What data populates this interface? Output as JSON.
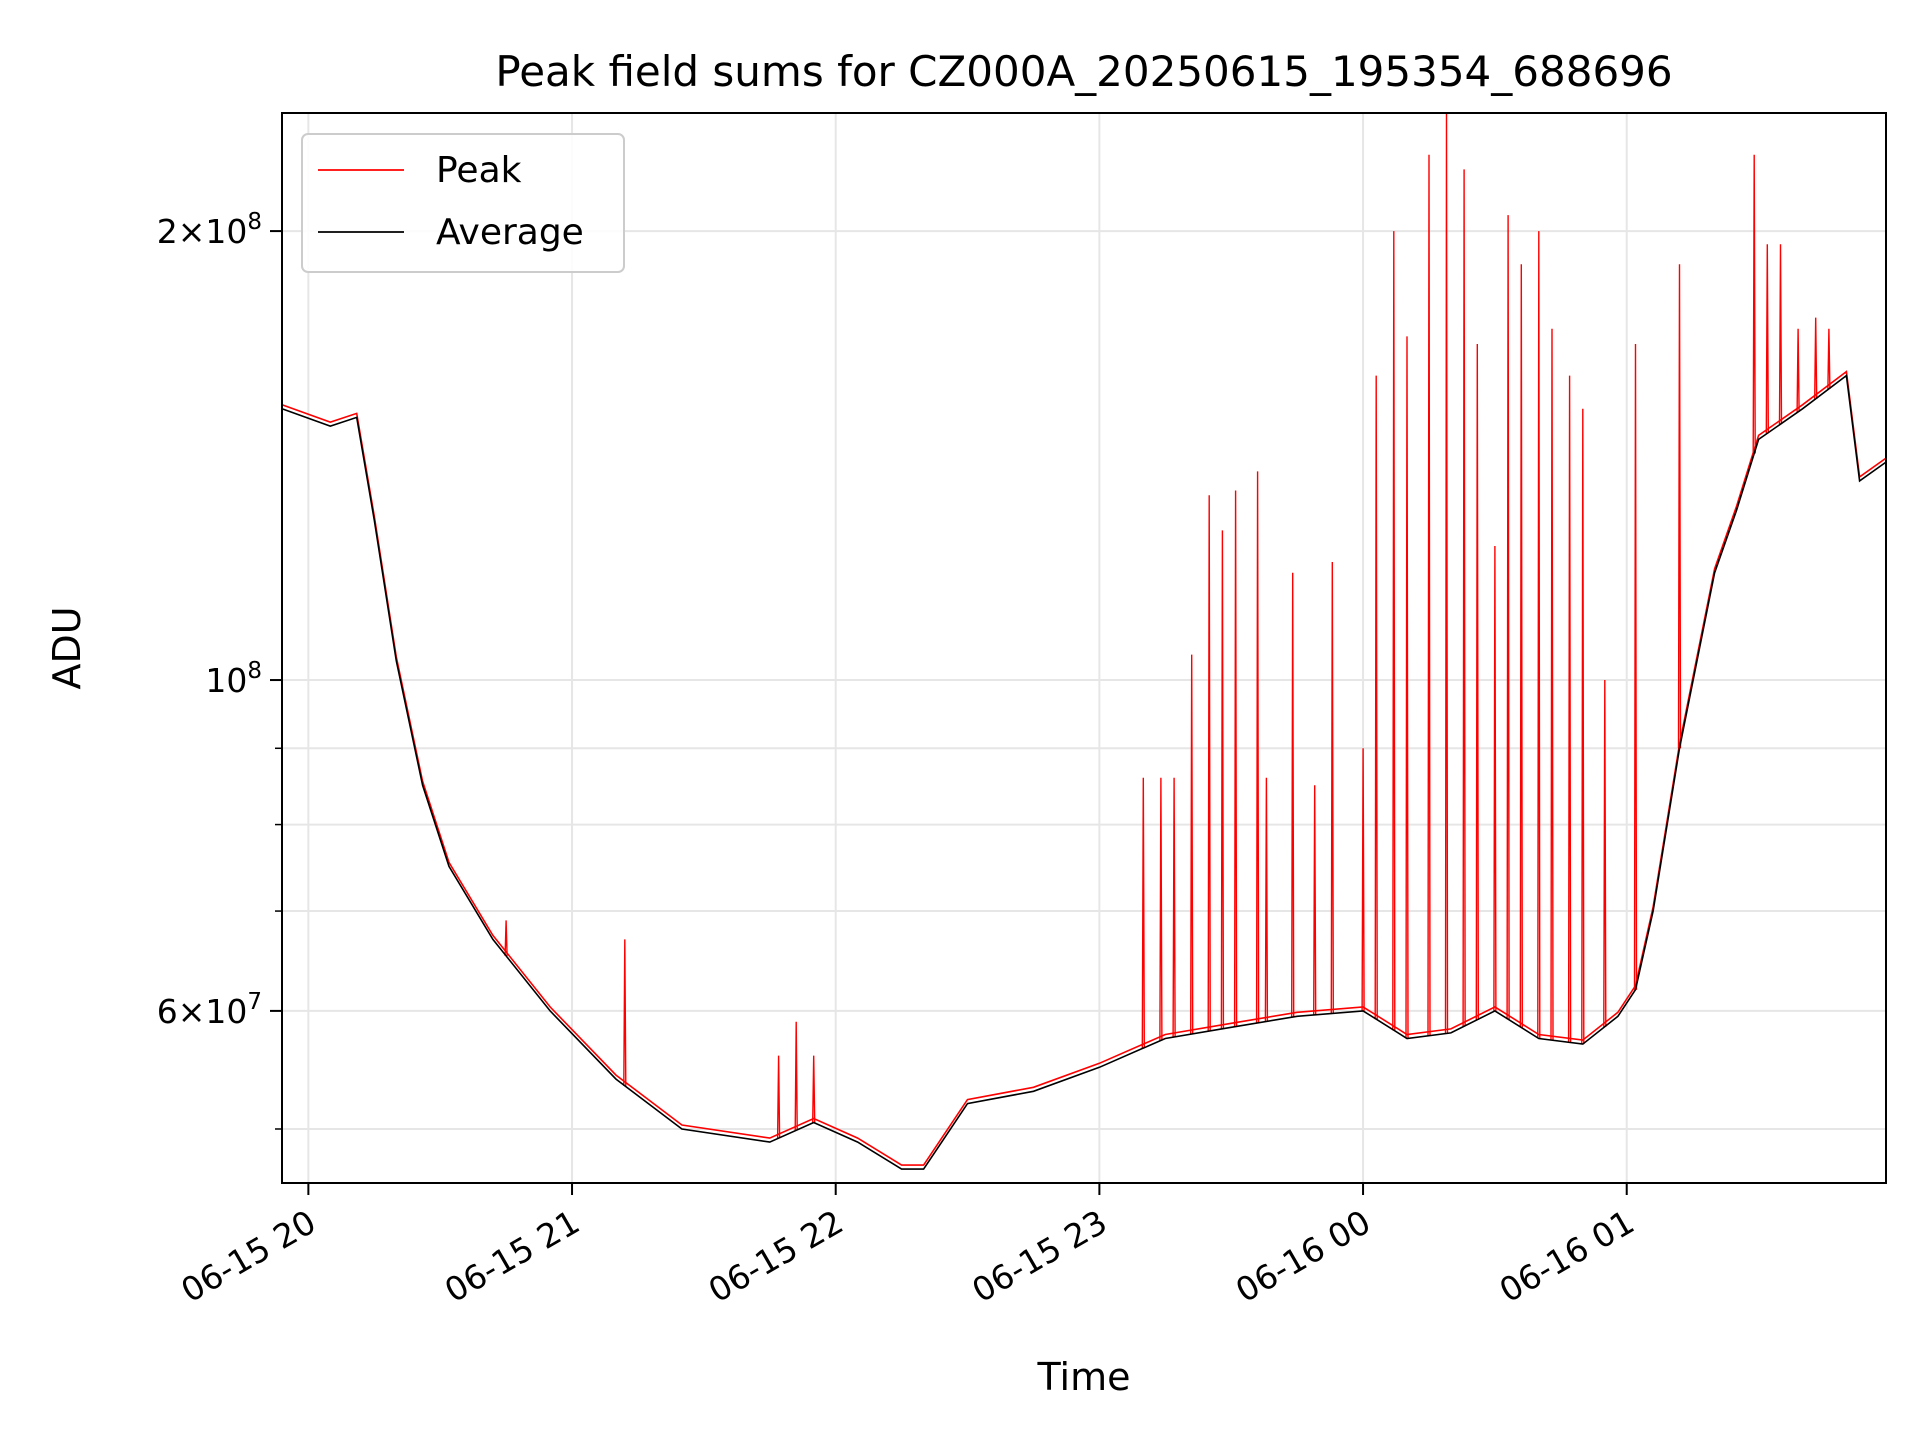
{
  "chart_data": {
    "type": "line",
    "title": "Peak field sums for CZ000A_20250615_195354_688696",
    "xlabel": "Time",
    "ylabel": "ADU",
    "yscale": "log",
    "ylim": [
      46000000,
      240000000
    ],
    "xlim": [
      "2025-06-15 19:54",
      "2025-06-16 01:59"
    ],
    "grid": true,
    "legend": "top-left",
    "x_ticks": [
      "2025-06-15 20:00",
      "2025-06-15 21:00",
      "2025-06-15 22:00",
      "2025-06-15 23:00",
      "2025-06-16 00:00",
      "2025-06-16 01:00"
    ],
    "x_tick_labels": [
      "06-15 20",
      "06-15 21",
      "06-15 22",
      "06-15 23",
      "06-16 00",
      "06-16 01"
    ],
    "y_ticks": [
      {
        "value": 200000000,
        "mantissa": "2",
        "exp": "8"
      },
      {
        "value": 100000000,
        "mantissa": "",
        "exp": "8"
      },
      {
        "value": 60000000,
        "mantissa": "6",
        "exp": "7"
      }
    ],
    "y_minor_ticks": [
      50000000,
      70000000,
      80000000,
      90000000
    ],
    "series": [
      {
        "name": "Average",
        "color": "#000000",
        "x": [
          "2025-06-15 19:54",
          "2025-06-15 20:05",
          "2025-06-15 20:11",
          "2025-06-15 20:15",
          "2025-06-15 20:20",
          "2025-06-15 20:26",
          "2025-06-15 20:32",
          "2025-06-15 20:42",
          "2025-06-15 20:55",
          "2025-06-15 21:10",
          "2025-06-15 21:25",
          "2025-06-15 21:45",
          "2025-06-15 21:55",
          "2025-06-15 22:05",
          "2025-06-15 22:15",
          "2025-06-15 22:20",
          "2025-06-15 22:30",
          "2025-06-15 22:45",
          "2025-06-15 23:00",
          "2025-06-15 23:15",
          "2025-06-15 23:30",
          "2025-06-15 23:45",
          "2025-06-16 00:00",
          "2025-06-16 00:10",
          "2025-06-16 00:20",
          "2025-06-16 00:30",
          "2025-06-16 00:40",
          "2025-06-16 00:50",
          "2025-06-16 00:58",
          "2025-06-16 01:02",
          "2025-06-16 01:06",
          "2025-06-16 01:12",
          "2025-06-16 01:20",
          "2025-06-16 01:25",
          "2025-06-16 01:30",
          "2025-06-16 01:40",
          "2025-06-16 01:50",
          "2025-06-16 01:53",
          "2025-06-16 01:59"
        ],
        "values": [
          152000000,
          148000000,
          150000000,
          128000000,
          103000000,
          85000000,
          75000000,
          67000000,
          60000000,
          54000000,
          50000000,
          49000000,
          50500000,
          49000000,
          47000000,
          47000000,
          52000000,
          53000000,
          55000000,
          57500000,
          58500000,
          59500000,
          60000000,
          57500000,
          58000000,
          60000000,
          57500000,
          57000000,
          59500000,
          62000000,
          70000000,
          90000000,
          118000000,
          130000000,
          145000000,
          152000000,
          160000000,
          136000000,
          140000000
        ]
      },
      {
        "name": "Peak",
        "color": "#ff0000",
        "x": [
          "2025-06-15 20:45",
          "2025-06-15 21:12",
          "2025-06-15 21:47",
          "2025-06-15 21:51",
          "2025-06-15 21:55",
          "2025-06-15 23:10",
          "2025-06-15 23:14",
          "2025-06-15 23:17",
          "2025-06-15 23:21",
          "2025-06-15 23:25",
          "2025-06-15 23:28",
          "2025-06-15 23:31",
          "2025-06-15 23:36",
          "2025-06-15 23:38",
          "2025-06-15 23:44",
          "2025-06-15 23:49",
          "2025-06-15 23:53",
          "2025-06-16 00:00",
          "2025-06-16 00:03",
          "2025-06-16 00:07",
          "2025-06-16 00:10",
          "2025-06-16 00:15",
          "2025-06-16 00:19",
          "2025-06-16 00:23",
          "2025-06-16 00:26",
          "2025-06-16 00:30",
          "2025-06-16 00:33",
          "2025-06-16 00:36",
          "2025-06-16 00:40",
          "2025-06-16 00:43",
          "2025-06-16 00:47",
          "2025-06-16 00:50",
          "2025-06-16 00:55",
          "2025-06-16 01:02",
          "2025-06-16 01:12",
          "2025-06-16 01:29",
          "2025-06-16 01:32",
          "2025-06-16 01:35",
          "2025-06-16 01:39",
          "2025-06-16 01:43",
          "2025-06-16 01:46"
        ],
        "values": [
          69000000,
          67000000,
          56000000,
          59000000,
          56000000,
          86000000,
          86000000,
          86000000,
          104000000,
          133000000,
          126000000,
          134000000,
          138000000,
          86000000,
          118000000,
          85000000,
          120000000,
          90000000,
          160000000,
          200000000,
          170000000,
          225000000,
          240000000,
          220000000,
          168000000,
          123000000,
          205000000,
          190000000,
          200000000,
          172000000,
          160000000,
          152000000,
          100000000,
          168000000,
          190000000,
          225000000,
          196000000,
          196000000,
          172000000,
          175000000,
          172000000
        ]
      }
    ]
  }
}
